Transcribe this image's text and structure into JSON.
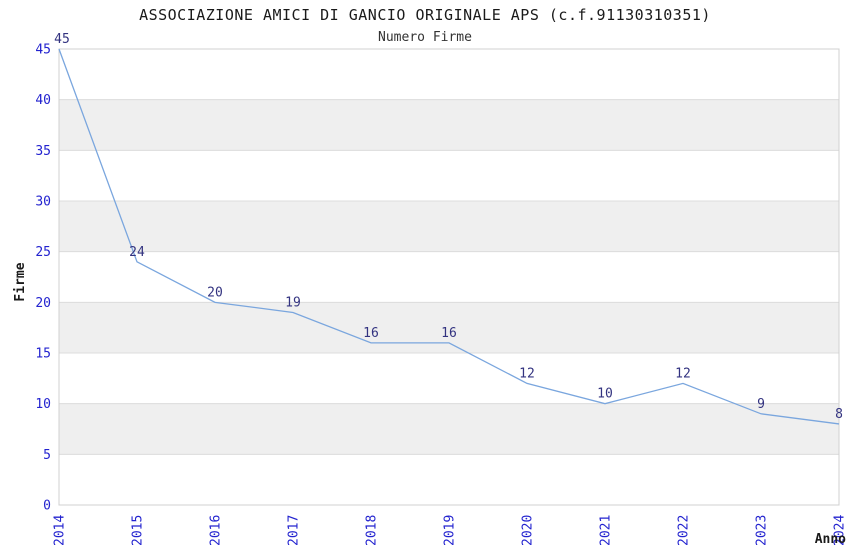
{
  "chart_data": {
    "type": "line",
    "title": "ASSOCIAZIONE AMICI DI GANCIO ORIGINALE APS (c.f.91130310351)",
    "subtitle": "Numero Firme",
    "xlabel": "Anno",
    "ylabel": "Firme",
    "x": [
      2014,
      2015,
      2016,
      2017,
      2018,
      2019,
      2020,
      2021,
      2022,
      2023,
      2024
    ],
    "values": [
      45,
      24,
      20,
      19,
      16,
      16,
      12,
      10,
      12,
      9,
      8
    ],
    "series_name": "Numero Firme",
    "ylim": [
      0,
      45
    ],
    "yticks": [
      0,
      5,
      10,
      15,
      20,
      25,
      30,
      35,
      40,
      45
    ],
    "grid": "horizontal gridlines with alternating gray bands",
    "legend": "none",
    "data_labels_visible": true,
    "colors": {
      "line": "#7aa6de",
      "data_label": "#333380",
      "tick_label": "#2323cf",
      "band": "#efefef",
      "gridline": "#dcdcdc",
      "plot_border": "#d0d0d0",
      "title": "#1a1a1a",
      "axis_title": "#1a1a1a",
      "background": "#ffffff"
    }
  }
}
